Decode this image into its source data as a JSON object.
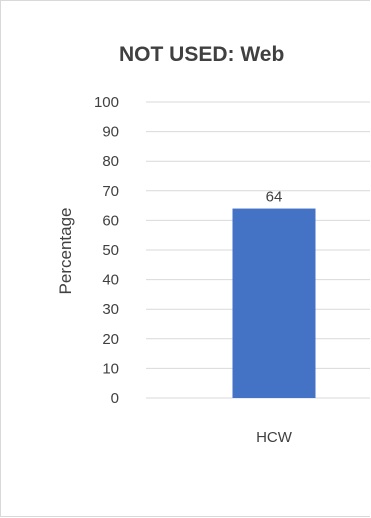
{
  "chart_data": {
    "type": "bar",
    "title": "NOT USED: Web",
    "categories": [
      "HCW"
    ],
    "values": [
      64
    ],
    "ylabel": "Percentage",
    "xlabel": "",
    "ylim": [
      0,
      100
    ],
    "yticks": [
      0,
      10,
      20,
      30,
      40,
      50,
      60,
      70,
      80,
      90,
      100
    ],
    "grid": true,
    "legend": "none",
    "data_labels": true,
    "colors": {
      "bar": "#4472c4",
      "grid": "#d9d9d9",
      "text": "#404040"
    }
  }
}
